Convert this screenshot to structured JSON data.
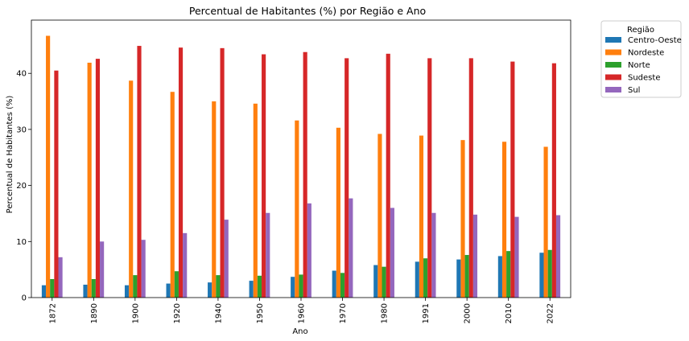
{
  "chart_data": {
    "type": "bar",
    "title": "Percentual de Habitantes (%) por Região e Ano",
    "xlabel": "Ano",
    "ylabel": "Percentual de Habitantes (%)",
    "ylim": [
      0,
      49.5
    ],
    "yticks": [
      0,
      10,
      20,
      30,
      40
    ],
    "grid": false,
    "legend_position": "outside-right",
    "legend_title": "Região",
    "categories": [
      "1872",
      "1890",
      "1900",
      "1920",
      "1940",
      "1950",
      "1960",
      "1970",
      "1980",
      "1991",
      "2000",
      "2010",
      "2022"
    ],
    "series": [
      {
        "name": "Centro-Oeste",
        "color": "#1f77b4",
        "values": [
          2.2,
          2.3,
          2.2,
          2.5,
          2.7,
          3.0,
          3.7,
          4.8,
          5.8,
          6.4,
          6.8,
          7.4,
          8.0
        ]
      },
      {
        "name": "Nordeste",
        "color": "#ff7f0e",
        "values": [
          46.7,
          41.9,
          38.7,
          36.7,
          35.0,
          34.6,
          31.6,
          30.3,
          29.2,
          28.9,
          28.1,
          27.8,
          26.9
        ]
      },
      {
        "name": "Norte",
        "color": "#2ca02c",
        "values": [
          3.3,
          3.3,
          4.0,
          4.7,
          4.0,
          3.9,
          4.1,
          4.4,
          5.5,
          7.0,
          7.6,
          8.3,
          8.5
        ]
      },
      {
        "name": "Sudeste",
        "color": "#d62728",
        "values": [
          40.5,
          42.6,
          44.9,
          44.6,
          44.5,
          43.4,
          43.8,
          42.7,
          43.5,
          42.7,
          42.7,
          42.1,
          41.8
        ]
      },
      {
        "name": "Sul",
        "color": "#9467bd",
        "values": [
          7.2,
          10.0,
          10.3,
          11.5,
          13.9,
          15.1,
          16.8,
          17.7,
          16.0,
          15.1,
          14.8,
          14.4,
          14.7
        ]
      }
    ]
  }
}
